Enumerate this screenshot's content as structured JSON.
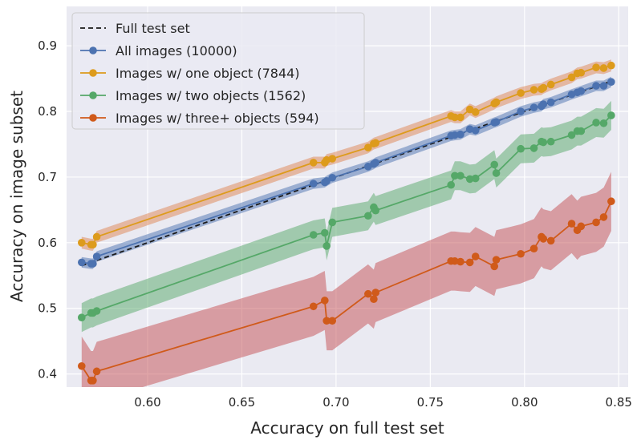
{
  "chart_data": {
    "type": "line",
    "xlabel": "Accuracy on full test set",
    "ylabel": "Accuracy on image subset",
    "xlim": [
      0.557,
      0.855
    ],
    "ylim": [
      0.38,
      0.96
    ],
    "xticks": [
      "0.60",
      "0.65",
      "0.70",
      "0.75",
      "0.80",
      "0.85"
    ],
    "xtick_values": [
      0.6,
      0.65,
      0.7,
      0.75,
      0.8,
      0.85
    ],
    "yticks": [
      "0.4",
      "0.5",
      "0.6",
      "0.7",
      "0.8",
      "0.9"
    ],
    "ytick_values": [
      0.4,
      0.5,
      0.6,
      0.7,
      0.8,
      0.9
    ],
    "grid": true,
    "background": "#EAEAF2",
    "legend_position": "top-left",
    "x": [
      0.565,
      0.57,
      0.571,
      0.573,
      0.688,
      0.694,
      0.695,
      0.698,
      0.717,
      0.72,
      0.721,
      0.761,
      0.763,
      0.766,
      0.771,
      0.774,
      0.784,
      0.785,
      0.798,
      0.805,
      0.809,
      0.81,
      0.814,
      0.825,
      0.828,
      0.83,
      0.838,
      0.842,
      0.846
    ],
    "reference": {
      "name": "Full test set",
      "color": "#1a1a1a",
      "values": [
        0.565,
        0.846
      ]
    },
    "series": [
      {
        "name": "All images (10000)",
        "color": "#4C72B0",
        "band": 0.008,
        "values": [
          0.57,
          0.568,
          0.568,
          0.579,
          0.69,
          0.692,
          0.694,
          0.699,
          0.716,
          0.72,
          0.722,
          0.763,
          0.764,
          0.765,
          0.773,
          0.771,
          0.783,
          0.784,
          0.8,
          0.806,
          0.808,
          0.811,
          0.814,
          0.826,
          0.829,
          0.831,
          0.839,
          0.839,
          0.845
        ]
      },
      {
        "name": "Images w/ one object (7844)",
        "color": "#DD8452",
        "line_color": "#DD9B1C",
        "band": 0.009,
        "values": [
          0.6,
          0.597,
          0.597,
          0.609,
          0.722,
          0.722,
          0.726,
          0.728,
          0.745,
          0.751,
          0.752,
          0.793,
          0.791,
          0.791,
          0.803,
          0.799,
          0.812,
          0.814,
          0.828,
          0.833,
          0.834,
          0.836,
          0.841,
          0.852,
          0.858,
          0.859,
          0.867,
          0.866,
          0.87
        ]
      },
      {
        "name": "Images w/ two objects (1562)",
        "color": "#55A868",
        "band": 0.022,
        "values": [
          0.486,
          0.493,
          0.493,
          0.496,
          0.612,
          0.615,
          0.595,
          0.631,
          0.641,
          0.654,
          0.649,
          0.688,
          0.702,
          0.702,
          0.697,
          0.698,
          0.719,
          0.706,
          0.743,
          0.744,
          0.754,
          0.753,
          0.754,
          0.764,
          0.77,
          0.77,
          0.783,
          0.782,
          0.794
        ]
      },
      {
        "name": "Images w/ three+ objects (594)",
        "color": "#C44E52",
        "line_color": "#D05A1A",
        "band": 0.045,
        "values": [
          0.412,
          0.39,
          0.39,
          0.404,
          0.503,
          0.512,
          0.481,
          0.481,
          0.522,
          0.514,
          0.524,
          0.572,
          0.572,
          0.571,
          0.57,
          0.579,
          0.564,
          0.574,
          0.583,
          0.591,
          0.609,
          0.606,
          0.603,
          0.629,
          0.619,
          0.625,
          0.631,
          0.639,
          0.663
        ]
      }
    ]
  }
}
